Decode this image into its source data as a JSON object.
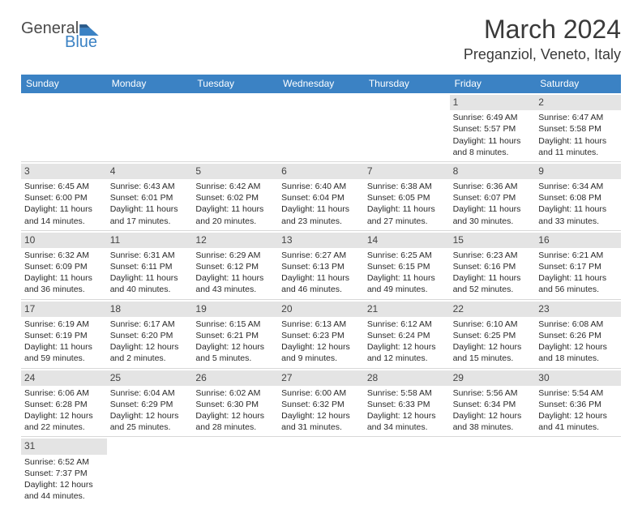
{
  "logo": {
    "text1": "General",
    "text2": "Blue",
    "shape_color": "#3b82c4",
    "text1_color": "#4a4a4a"
  },
  "title": "March 2024",
  "location": "Preganziol, Veneto, Italy",
  "colors": {
    "header_bg": "#3b82c4",
    "daynum_bg": "#e4e4e4",
    "border": "#d8d8d8",
    "text": "#2a2a2a"
  },
  "weekdays": [
    "Sunday",
    "Monday",
    "Tuesday",
    "Wednesday",
    "Thursday",
    "Friday",
    "Saturday"
  ],
  "weeks": [
    [
      null,
      null,
      null,
      null,
      null,
      {
        "n": "1",
        "sr": "Sunrise: 6:49 AM",
        "ss": "Sunset: 5:57 PM",
        "dl": "Daylight: 11 hours and 8 minutes."
      },
      {
        "n": "2",
        "sr": "Sunrise: 6:47 AM",
        "ss": "Sunset: 5:58 PM",
        "dl": "Daylight: 11 hours and 11 minutes."
      }
    ],
    [
      {
        "n": "3",
        "sr": "Sunrise: 6:45 AM",
        "ss": "Sunset: 6:00 PM",
        "dl": "Daylight: 11 hours and 14 minutes."
      },
      {
        "n": "4",
        "sr": "Sunrise: 6:43 AM",
        "ss": "Sunset: 6:01 PM",
        "dl": "Daylight: 11 hours and 17 minutes."
      },
      {
        "n": "5",
        "sr": "Sunrise: 6:42 AM",
        "ss": "Sunset: 6:02 PM",
        "dl": "Daylight: 11 hours and 20 minutes."
      },
      {
        "n": "6",
        "sr": "Sunrise: 6:40 AM",
        "ss": "Sunset: 6:04 PM",
        "dl": "Daylight: 11 hours and 23 minutes."
      },
      {
        "n": "7",
        "sr": "Sunrise: 6:38 AM",
        "ss": "Sunset: 6:05 PM",
        "dl": "Daylight: 11 hours and 27 minutes."
      },
      {
        "n": "8",
        "sr": "Sunrise: 6:36 AM",
        "ss": "Sunset: 6:07 PM",
        "dl": "Daylight: 11 hours and 30 minutes."
      },
      {
        "n": "9",
        "sr": "Sunrise: 6:34 AM",
        "ss": "Sunset: 6:08 PM",
        "dl": "Daylight: 11 hours and 33 minutes."
      }
    ],
    [
      {
        "n": "10",
        "sr": "Sunrise: 6:32 AM",
        "ss": "Sunset: 6:09 PM",
        "dl": "Daylight: 11 hours and 36 minutes."
      },
      {
        "n": "11",
        "sr": "Sunrise: 6:31 AM",
        "ss": "Sunset: 6:11 PM",
        "dl": "Daylight: 11 hours and 40 minutes."
      },
      {
        "n": "12",
        "sr": "Sunrise: 6:29 AM",
        "ss": "Sunset: 6:12 PM",
        "dl": "Daylight: 11 hours and 43 minutes."
      },
      {
        "n": "13",
        "sr": "Sunrise: 6:27 AM",
        "ss": "Sunset: 6:13 PM",
        "dl": "Daylight: 11 hours and 46 minutes."
      },
      {
        "n": "14",
        "sr": "Sunrise: 6:25 AM",
        "ss": "Sunset: 6:15 PM",
        "dl": "Daylight: 11 hours and 49 minutes."
      },
      {
        "n": "15",
        "sr": "Sunrise: 6:23 AM",
        "ss": "Sunset: 6:16 PM",
        "dl": "Daylight: 11 hours and 52 minutes."
      },
      {
        "n": "16",
        "sr": "Sunrise: 6:21 AM",
        "ss": "Sunset: 6:17 PM",
        "dl": "Daylight: 11 hours and 56 minutes."
      }
    ],
    [
      {
        "n": "17",
        "sr": "Sunrise: 6:19 AM",
        "ss": "Sunset: 6:19 PM",
        "dl": "Daylight: 11 hours and 59 minutes."
      },
      {
        "n": "18",
        "sr": "Sunrise: 6:17 AM",
        "ss": "Sunset: 6:20 PM",
        "dl": "Daylight: 12 hours and 2 minutes."
      },
      {
        "n": "19",
        "sr": "Sunrise: 6:15 AM",
        "ss": "Sunset: 6:21 PM",
        "dl": "Daylight: 12 hours and 5 minutes."
      },
      {
        "n": "20",
        "sr": "Sunrise: 6:13 AM",
        "ss": "Sunset: 6:23 PM",
        "dl": "Daylight: 12 hours and 9 minutes."
      },
      {
        "n": "21",
        "sr": "Sunrise: 6:12 AM",
        "ss": "Sunset: 6:24 PM",
        "dl": "Daylight: 12 hours and 12 minutes."
      },
      {
        "n": "22",
        "sr": "Sunrise: 6:10 AM",
        "ss": "Sunset: 6:25 PM",
        "dl": "Daylight: 12 hours and 15 minutes."
      },
      {
        "n": "23",
        "sr": "Sunrise: 6:08 AM",
        "ss": "Sunset: 6:26 PM",
        "dl": "Daylight: 12 hours and 18 minutes."
      }
    ],
    [
      {
        "n": "24",
        "sr": "Sunrise: 6:06 AM",
        "ss": "Sunset: 6:28 PM",
        "dl": "Daylight: 12 hours and 22 minutes."
      },
      {
        "n": "25",
        "sr": "Sunrise: 6:04 AM",
        "ss": "Sunset: 6:29 PM",
        "dl": "Daylight: 12 hours and 25 minutes."
      },
      {
        "n": "26",
        "sr": "Sunrise: 6:02 AM",
        "ss": "Sunset: 6:30 PM",
        "dl": "Daylight: 12 hours and 28 minutes."
      },
      {
        "n": "27",
        "sr": "Sunrise: 6:00 AM",
        "ss": "Sunset: 6:32 PM",
        "dl": "Daylight: 12 hours and 31 minutes."
      },
      {
        "n": "28",
        "sr": "Sunrise: 5:58 AM",
        "ss": "Sunset: 6:33 PM",
        "dl": "Daylight: 12 hours and 34 minutes."
      },
      {
        "n": "29",
        "sr": "Sunrise: 5:56 AM",
        "ss": "Sunset: 6:34 PM",
        "dl": "Daylight: 12 hours and 38 minutes."
      },
      {
        "n": "30",
        "sr": "Sunrise: 5:54 AM",
        "ss": "Sunset: 6:36 PM",
        "dl": "Daylight: 12 hours and 41 minutes."
      }
    ],
    [
      {
        "n": "31",
        "sr": "Sunrise: 6:52 AM",
        "ss": "Sunset: 7:37 PM",
        "dl": "Daylight: 12 hours and 44 minutes."
      },
      null,
      null,
      null,
      null,
      null,
      null
    ]
  ]
}
